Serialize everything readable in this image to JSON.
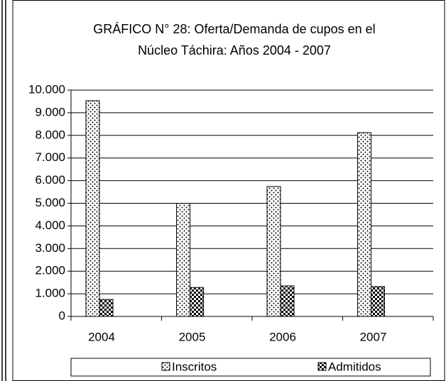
{
  "chart_data": {
    "type": "bar",
    "title": [
      "GRÁFICO N° 28: Oferta/Demanda de cupos en el",
      "Núcleo Táchira: Años 2004 - 2007"
    ],
    "categories": [
      "2004",
      "2005",
      "2006",
      "2007"
    ],
    "series": [
      {
        "name": "Inscritos",
        "color": "#000000",
        "pattern": "dots",
        "values": [
          9530,
          5000,
          5740,
          8120
        ]
      },
      {
        "name": "Admitidos",
        "color": "#000000",
        "pattern": "checker",
        "values": [
          750,
          1280,
          1350,
          1320
        ]
      }
    ],
    "ylim": [
      0,
      10000
    ],
    "yticks": [
      0,
      {
        "value": 1000,
        "label": "1.000"
      },
      {
        "value": 2000,
        "label": "2.000"
      },
      {
        "value": 3000,
        "label": "3.000"
      },
      {
        "value": 4000,
        "label": "4.000"
      },
      {
        "value": 5000,
        "label": "5.000"
      },
      {
        "value": 6000,
        "label": "6.000"
      },
      {
        "value": 7000,
        "label": "7.000"
      },
      {
        "value": 8000,
        "label": "8.000"
      },
      {
        "value": 9000,
        "label": "9.000"
      },
      {
        "value": 10000,
        "label": "10.000"
      }
    ],
    "grid": true,
    "legend": "bottom"
  }
}
